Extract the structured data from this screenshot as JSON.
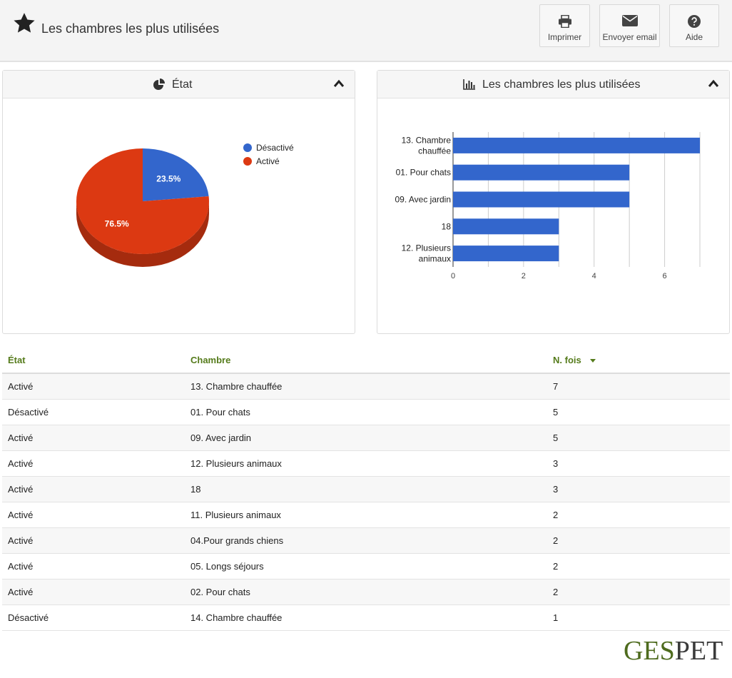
{
  "header": {
    "title": "Les chambres les plus utilisées",
    "buttons": {
      "print": "Imprimer",
      "email": "Envoyer email",
      "help": "Aide"
    }
  },
  "panels": {
    "state": {
      "title": "État"
    },
    "rooms": {
      "title": "Les chambres les plus utilisées"
    }
  },
  "colors": {
    "blue": "#3366cc",
    "red": "#dc3912",
    "green_header": "#557b1b"
  },
  "chart_data": [
    {
      "type": "pie",
      "title": "",
      "slices": [
        {
          "label": "Désactivé",
          "value": 23.5,
          "display": "23.5%",
          "color": "#3366cc"
        },
        {
          "label": "Activé",
          "value": 76.5,
          "display": "76.5%",
          "color": "#dc3912"
        }
      ],
      "legend_placement": "right"
    },
    {
      "type": "bar",
      "orientation": "horizontal",
      "title": "",
      "categories": [
        "13. Chambre chauffée",
        "01. Pour chats",
        "09. Avec jardin",
        "18",
        "12. Plusieurs animaux"
      ],
      "category_label_lines": [
        [
          "13. Chambre",
          "chauffée"
        ],
        [
          "01. Pour chats"
        ],
        [
          "09. Avec jardin"
        ],
        [
          "18"
        ],
        [
          "12. Plusieurs",
          "animaux"
        ]
      ],
      "values": [
        7,
        5,
        5,
        3,
        3
      ],
      "xlim": [
        0,
        7
      ],
      "xticks": [
        0,
        2,
        4,
        6
      ],
      "grid": true,
      "color": "#3366cc"
    }
  ],
  "table": {
    "headers": {
      "state": "État",
      "room": "Chambre",
      "count": "N. fois"
    },
    "rows": [
      {
        "state": "Activé",
        "room": "13. Chambre chauffée",
        "count": "7"
      },
      {
        "state": "Désactivé",
        "room": "01. Pour chats",
        "count": "5"
      },
      {
        "state": "Activé",
        "room": "09. Avec jardin",
        "count": "5"
      },
      {
        "state": "Activé",
        "room": "12. Plusieurs animaux",
        "count": "3"
      },
      {
        "state": "Activé",
        "room": "18",
        "count": "3"
      },
      {
        "state": "Activé",
        "room": "11. Plusieurs animaux",
        "count": "2"
      },
      {
        "state": "Activé",
        "room": "04.Pour grands chiens",
        "count": "2"
      },
      {
        "state": "Activé",
        "room": "05. Longs séjours",
        "count": "2"
      },
      {
        "state": "Activé",
        "room": "02. Pour chats",
        "count": "2"
      },
      {
        "state": "Désactivé",
        "room": "14. Chambre chauffée",
        "count": "1"
      }
    ]
  },
  "logo": {
    "part1": "GES",
    "part2": "PET"
  }
}
